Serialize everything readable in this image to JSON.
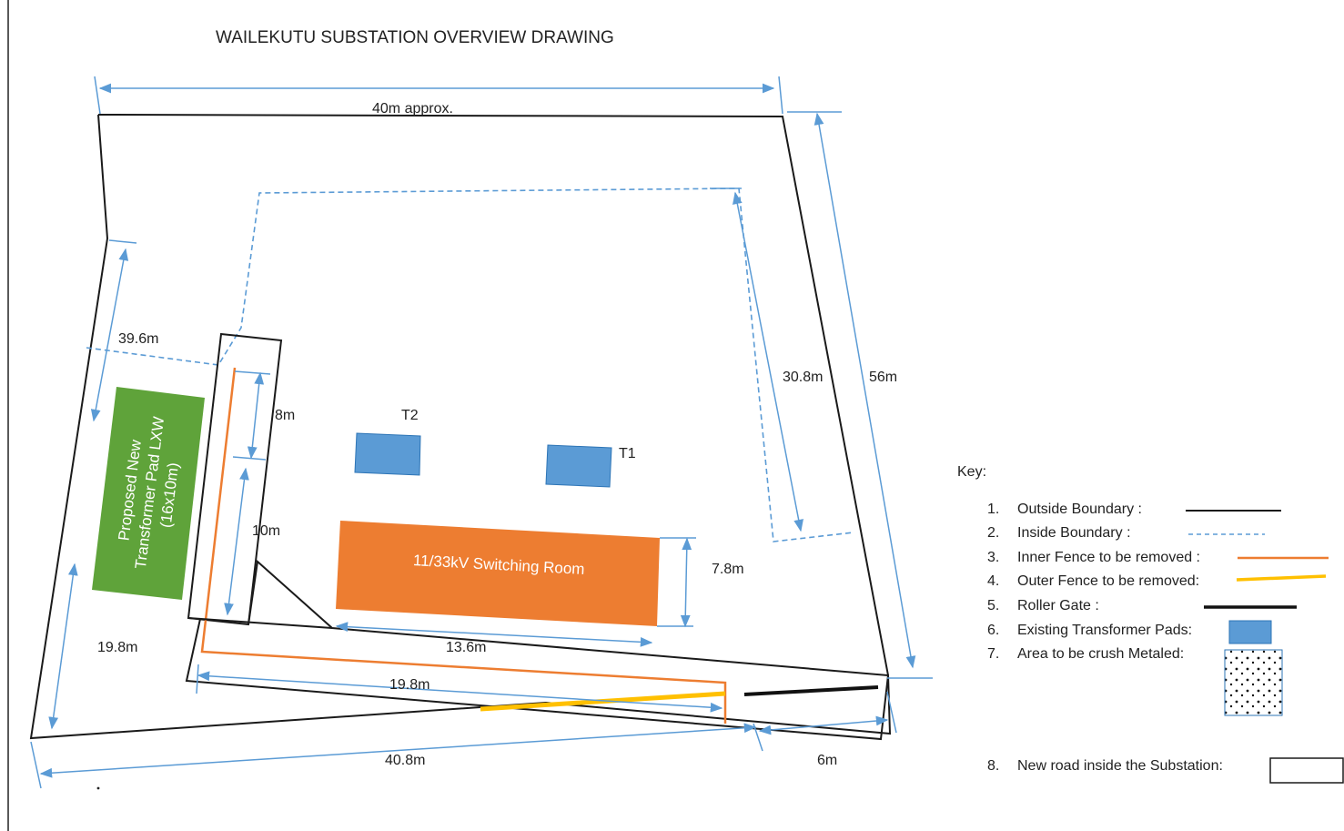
{
  "title": "WAILEKUTU SUBSTATION OVERVIEW DRAWING",
  "dimensions": {
    "top_width": "40m approx.",
    "right_height": "56m",
    "inside_right": "30.8m",
    "left_diag": "39.6m",
    "left_lower": "19.8m",
    "fence_8m": "8m",
    "fence_10m": "10m",
    "room_height": "7.8m",
    "room_width": "13.6m",
    "road_length": "19.8m",
    "bottom_length": "40.8m",
    "gate_6m": "6m"
  },
  "labels": {
    "t1": "T1",
    "t2": "T2",
    "switching_room": "11/33kV Switching Room",
    "proposed_pad_line1": "Proposed New",
    "proposed_pad_line2": "Transformer Pad LXW",
    "proposed_pad_line3": "(16x10m)"
  },
  "colors": {
    "outline": "#1a1a1a",
    "dimension": "#5b9bd5",
    "inner_fence": "#ed7d31",
    "outer_fence": "#ffc000",
    "transformer_pad": "#5b9bd5",
    "switching_room": "#ed7d31",
    "proposed_pad": "#5fa33a"
  },
  "key": {
    "heading": "Key:",
    "items": [
      {
        "num": "1.",
        "label": "Outside Boundary :",
        "symbol": "solid-line"
      },
      {
        "num": "2.",
        "label": "Inside Boundary :",
        "symbol": "dashed-line"
      },
      {
        "num": "3.",
        "label": "Inner Fence to be removed :",
        "symbol": "orange-line"
      },
      {
        "num": "4.",
        "label": "Outer Fence to be removed:",
        "symbol": "yellow-line"
      },
      {
        "num": "5.",
        "label": "Roller Gate :",
        "symbol": "thick-line"
      },
      {
        "num": "6.",
        "label": "Existing Transformer Pads:",
        "symbol": "blue-rect"
      },
      {
        "num": "7.",
        "label": "Area to be crush Metaled:",
        "symbol": "dotted-box"
      },
      {
        "num": "8.",
        "label": "New road inside the Substation:",
        "symbol": "empty-box"
      }
    ]
  }
}
